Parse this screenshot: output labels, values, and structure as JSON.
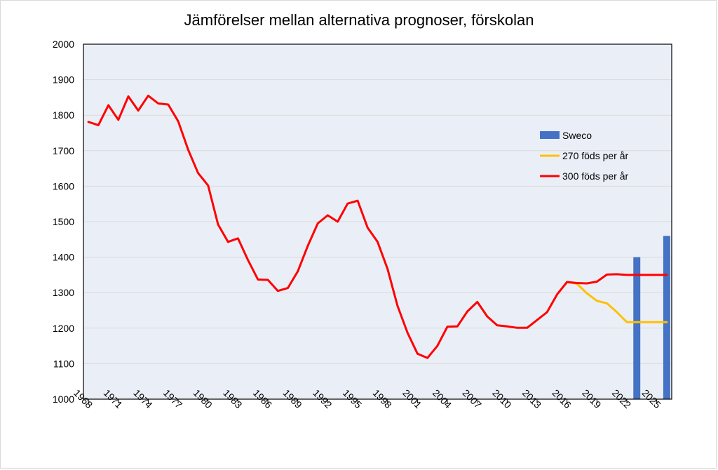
{
  "chart_data": {
    "type": "line",
    "title": "Jämförelser mellan alternativa prognoser, förskolan",
    "xlabel": "",
    "ylabel": "",
    "ylim": [
      1000,
      2000
    ],
    "yticks": [
      "1000",
      "1100",
      "1200",
      "1300",
      "1400",
      "1500",
      "1600",
      "1700",
      "1800",
      "1900",
      "2000"
    ],
    "xticks": [
      "1968",
      "1971",
      "1974",
      "1977",
      "1980",
      "1983",
      "1986",
      "1989",
      "1992",
      "1995",
      "1998",
      "2001",
      "2004",
      "2007",
      "2010",
      "2013",
      "2016",
      "2019",
      "2022",
      "2025"
    ],
    "x_range": [
      1968,
      2026
    ],
    "grid": true,
    "legend_position": "right",
    "series": [
      {
        "name": "Sweco",
        "type": "bar",
        "color": "#4472C4",
        "x": [
          2023,
          2026
        ],
        "values": [
          1400,
          1460
        ]
      },
      {
        "name": "270 föds per år",
        "type": "line",
        "color": "#FFC000",
        "x": [
          2016,
          2017,
          2018,
          2019,
          2020,
          2021,
          2022,
          2023,
          2024,
          2025,
          2026
        ],
        "values": [
          1330,
          1325,
          1298,
          1277,
          1270,
          1245,
          1217,
          1217,
          1217,
          1217,
          1217
        ]
      },
      {
        "name": "300 föds per år",
        "type": "line",
        "color": "#FF0000",
        "x": [
          1968,
          1969,
          1970,
          1971,
          1972,
          1973,
          1974,
          1975,
          1976,
          1977,
          1978,
          1979,
          1980,
          1981,
          1982,
          1983,
          1984,
          1985,
          1986,
          1987,
          1988,
          1989,
          1990,
          1991,
          1992,
          1993,
          1994,
          1995,
          1996,
          1997,
          1998,
          1999,
          2000,
          2001,
          2002,
          2003,
          2004,
          2005,
          2006,
          2007,
          2008,
          2009,
          2010,
          2011,
          2012,
          2013,
          2014,
          2015,
          2016,
          2017,
          2018,
          2019,
          2020,
          2021,
          2022,
          2023,
          2024,
          2025,
          2026
        ],
        "values": [
          1781,
          1772,
          1828,
          1787,
          1853,
          1813,
          1855,
          1833,
          1830,
          1783,
          1703,
          1637,
          1602,
          1492,
          1443,
          1453,
          1392,
          1337,
          1336,
          1305,
          1313,
          1360,
          1432,
          1495,
          1518,
          1500,
          1551,
          1559,
          1483,
          1443,
          1367,
          1263,
          1187,
          1128,
          1116,
          1150,
          1204,
          1205,
          1247,
          1274,
          1233,
          1208,
          1205,
          1201,
          1201,
          1223,
          1245,
          1295,
          1330,
          1327,
          1326,
          1331,
          1351,
          1352,
          1350,
          1350,
          1350,
          1350,
          1350
        ]
      }
    ]
  }
}
